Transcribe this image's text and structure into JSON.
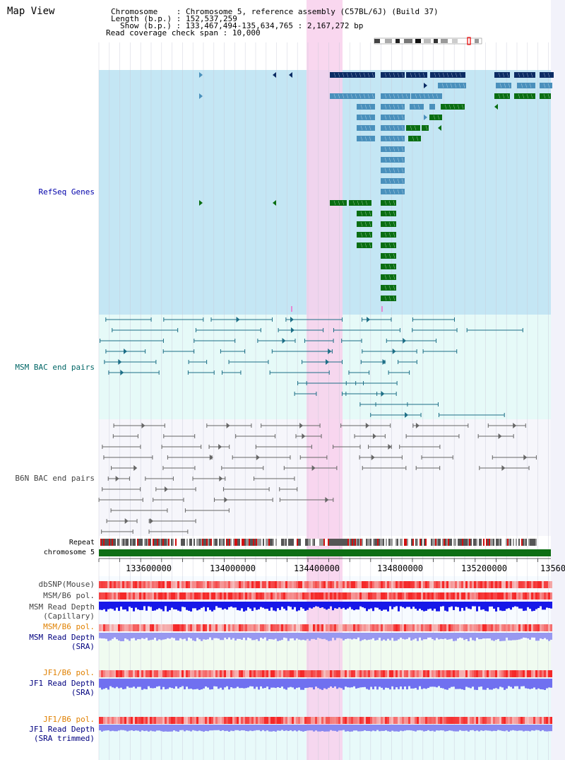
{
  "view_title": "Map View",
  "header": {
    "chromosome_label": "Chromosome",
    "chromosome_value": "Chromosome 5, reference assembly (C57BL/6J) (Build 37)",
    "length_label": "Length (b.p.)",
    "length_value": "152,537,259",
    "show_label": "Show (b.p.)",
    "show_value": "133,467,494-135,634,765 : 2,167,272 bp",
    "coverage_label": "Read coverage check span",
    "coverage_value": "10,000"
  },
  "tracks": {
    "refseq": "RefSeq Genes",
    "msm_bac": "MSM BAC end pairs",
    "b6n_bac": "B6N BAC end pairs",
    "repeat": "Repeat",
    "chromosome": "chromosome 5",
    "dbsnp": "dbSNP(Mouse)",
    "msm_b6_pol_1": "MSM/B6 pol.",
    "msm_depth_cap_1": "MSM Read Depth",
    "msm_depth_cap_2": "(Capillary)",
    "msm_b6_pol_2": "MSM/B6 pol.",
    "msm_depth_sra_1": "MSM Read Depth",
    "msm_depth_sra_2": "(SRA)",
    "jf1_b6_pol_1": "JF1/B6 pol.",
    "jf1_depth_sra_1": "JF1 Read Depth",
    "jf1_depth_sra_2": "(SRA)",
    "jf1_b6_pol_2": "JF1/B6 pol.",
    "jf1_depth_trim_1": "JF1 Read Depth",
    "jf1_depth_trim_2": "(SRA trimmed)"
  },
  "axis": {
    "ticks": [
      "133600000",
      "134000000",
      "134400000",
      "134800000",
      "135200000",
      "13560"
    ]
  },
  "colors": {
    "refseq_bg": "#c4e6f4",
    "bac_bg": "#e6faf8",
    "highlight": "#f8d0ec",
    "gene_dark": "#0c2c64",
    "gene_mid": "#4a90bc",
    "gene_green": "#0a6e12",
    "bac_teal": "#1c6e86",
    "bac_gray": "#666666",
    "chromosome_bar": "#0e6e14"
  }
}
